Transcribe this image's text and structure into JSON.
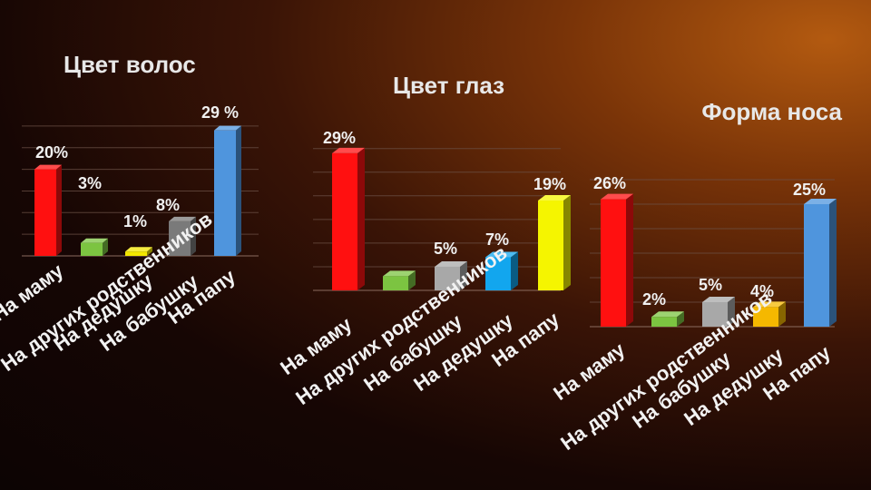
{
  "chart_data": [
    {
      "type": "bar",
      "title": "Цвет волос",
      "categories": [
        "На маму",
        "На других родственников",
        "На дедушку",
        "На бабушку",
        "На папу"
      ],
      "values": [
        20,
        3,
        1,
        8,
        29
      ],
      "value_labels": [
        "20%",
        "3%",
        "1%",
        "8%",
        "29 %"
      ],
      "colors": [
        "#ff1010",
        "#7cc441",
        "#f2e600",
        "#7a7a7a",
        "#4f95dd"
      ],
      "ylim": [
        0,
        30
      ],
      "grid": true
    },
    {
      "type": "bar",
      "title": "Цвет глаз",
      "categories": [
        "На маму",
        "На других родственников",
        "На бабушку",
        "На дедушку",
        "На папу"
      ],
      "values": [
        29,
        3,
        5,
        7,
        19
      ],
      "value_labels": [
        "29%",
        "",
        "5%",
        "7%",
        "19%"
      ],
      "colors": [
        "#ff1010",
        "#7cc441",
        "#a8a8a8",
        "#12a6ee",
        "#f5f500"
      ],
      "ylim": [
        0,
        30
      ],
      "grid": true
    },
    {
      "type": "bar",
      "title": "Форма носа",
      "categories": [
        "На маму",
        "На других родственников",
        "На бабушку",
        "На дедушку",
        "На папу"
      ],
      "values": [
        26,
        2,
        5,
        4,
        25
      ],
      "value_labels": [
        "26%",
        "2%",
        "5%",
        "4%",
        "25%"
      ],
      "colors": [
        "#ff1010",
        "#7cc441",
        "#a8a8a8",
        "#f5b800",
        "#4f95dd"
      ],
      "ylim": [
        0,
        30
      ],
      "grid": true
    }
  ]
}
